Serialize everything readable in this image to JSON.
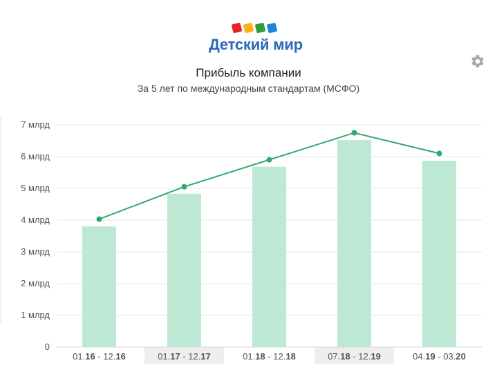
{
  "brand": {
    "name": "Детский мир",
    "square_colors": [
      "#e32421",
      "#f6b21c",
      "#2f9a3e",
      "#1e88d8"
    ],
    "text_color": "#2a6ab7"
  },
  "toolbar": {
    "settings_icon": "gear-icon"
  },
  "chart_data": {
    "type": "bar",
    "title": "Прибыль компании",
    "subtitle": "За 5 лет по международным стандартам (МСФО)",
    "categories": [
      {
        "parts": [
          [
            "01.",
            false
          ],
          [
            "16",
            true
          ],
          [
            " - 12.",
            false
          ],
          [
            "16",
            true
          ]
        ],
        "shaded": false
      },
      {
        "parts": [
          [
            "01.",
            false
          ],
          [
            "17",
            true
          ],
          [
            " - 12.",
            false
          ],
          [
            "17",
            true
          ]
        ],
        "shaded": true
      },
      {
        "parts": [
          [
            "01.",
            false
          ],
          [
            "18",
            true
          ],
          [
            " - 12.",
            false
          ],
          [
            "18",
            true
          ]
        ],
        "shaded": false
      },
      {
        "parts": [
          [
            "07.",
            false
          ],
          [
            "18",
            true
          ],
          [
            " - 12.",
            false
          ],
          [
            "19",
            true
          ]
        ],
        "shaded": true
      },
      {
        "parts": [
          [
            "04.",
            false
          ],
          [
            "19",
            true
          ],
          [
            " - 03.",
            false
          ],
          [
            "20",
            true
          ]
        ],
        "shaded": false
      }
    ],
    "series": [
      {
        "kind": "bar",
        "values": [
          3.8,
          4.83,
          5.68,
          6.52,
          5.87
        ],
        "color": "#bde8d3"
      },
      {
        "kind": "line",
        "values": [
          4.03,
          5.05,
          5.9,
          6.75,
          6.1
        ],
        "color": "#2eaa6c"
      }
    ],
    "yticks": [
      "0",
      "1 млрд",
      "2 млрд",
      "3 млрд",
      "4 млрд",
      "5 млрд",
      "6 млрд",
      "7 млрд"
    ],
    "ylim": [
      0,
      7
    ],
    "grid": true,
    "category_shade_color": "#eeeeee"
  }
}
